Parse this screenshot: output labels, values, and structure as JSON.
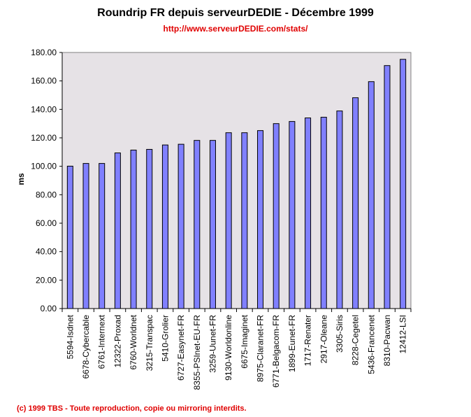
{
  "chart_data": {
    "type": "bar",
    "title": "Roundrip FR depuis serveurDEDIE - Décembre 1999",
    "subtitle": "http://www.serveurDEDIE.com/stats/",
    "xlabel": "",
    "ylabel": "ms",
    "ylim": [
      0,
      180
    ],
    "yticks": [
      "0.00",
      "20.00",
      "40.00",
      "60.00",
      "80.00",
      "100.00",
      "120.00",
      "140.00",
      "160.00",
      "180.00"
    ],
    "grid": false,
    "legend": "none",
    "bar_color": "#8080ff",
    "plot_background": "#e6e2e6",
    "categories": [
      "5594-Isdnet",
      "6678-Cybercable",
      "6761-Internext",
      "12322-Proxad",
      "6760-Worldnet",
      "3215-Transpac",
      "5410-Grolier",
      "6727-Easynet-FR",
      "8355-PSInet-EU-FR",
      "3259-Uunet-FR",
      "9130-Worldonline",
      "6675-Imaginet",
      "8975-Claranet-FR",
      "6771-Belgacom-FR",
      "1899-Eunet-FR",
      "1717-Renater",
      "2917-Oleane",
      "3305-Siris",
      "8228-Cegetel",
      "5436-Francenet",
      "8310-Pacwan",
      "12412-LSI"
    ],
    "values": [
      100.1,
      102.0,
      102.0,
      109.4,
      111.4,
      111.9,
      115.0,
      115.5,
      118.2,
      118.2,
      123.6,
      123.6,
      125.1,
      130.0,
      131.5,
      134.0,
      134.5,
      138.9,
      148.2,
      159.5,
      170.8,
      175.2
    ]
  },
  "footer": "(c) 1999 TBS - Toute reproduction, copie ou mirroring interdits."
}
